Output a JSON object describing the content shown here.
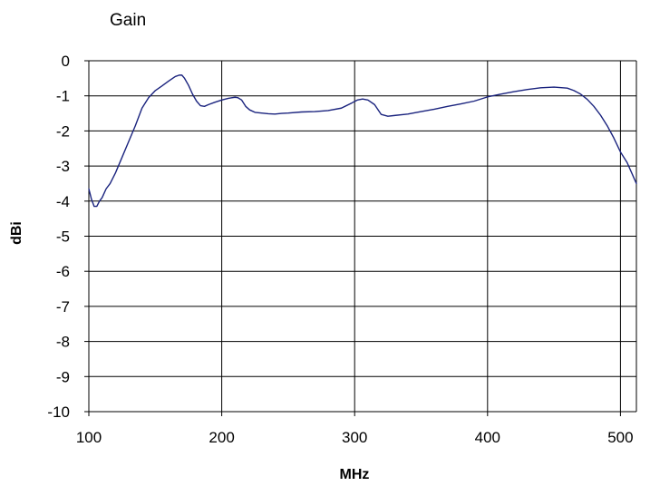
{
  "chart_data": {
    "type": "line",
    "title": "Gain",
    "xlabel": "MHz",
    "ylabel": "dBi",
    "xlim": [
      100,
      512
    ],
    "ylim": [
      -10,
      0
    ],
    "x_ticks": [
      100,
      200,
      300,
      400,
      500
    ],
    "x_tick_labels": [
      "100",
      "200",
      "300",
      "400",
      "500"
    ],
    "y_ticks": [
      0,
      -1,
      -2,
      -3,
      -4,
      -5,
      -6,
      -7,
      -8,
      -9,
      -10
    ],
    "y_tick_labels": [
      "0",
      "-1",
      "-2",
      "-3",
      "-4",
      "-5",
      "-6",
      "-7",
      "-8",
      "-9",
      "-10"
    ],
    "grid": true,
    "line_color": "#1a237e",
    "series": [
      {
        "x": [
          100,
          102,
          104,
          106,
          108,
          110,
          113,
          116,
          120,
          125,
          130,
          135,
          140,
          145,
          150,
          155,
          160,
          165,
          168,
          170,
          172,
          175,
          178,
          181,
          184,
          187,
          190,
          195,
          200,
          205,
          210,
          212,
          215,
          218,
          221,
          225,
          230,
          235,
          240,
          245,
          250,
          260,
          270,
          280,
          290,
          298,
          302,
          306,
          310,
          315,
          320,
          325,
          330,
          340,
          350,
          360,
          370,
          380,
          390,
          400,
          410,
          420,
          430,
          440,
          450,
          460,
          465,
          470,
          475,
          480,
          485,
          490,
          495,
          500,
          505,
          512
        ],
        "y": [
          -3.65,
          -3.95,
          -4.15,
          -4.15,
          -4.0,
          -3.9,
          -3.65,
          -3.5,
          -3.2,
          -2.75,
          -2.3,
          -1.85,
          -1.35,
          -1.05,
          -0.85,
          -0.72,
          -0.58,
          -0.45,
          -0.41,
          -0.41,
          -0.5,
          -0.7,
          -0.95,
          -1.15,
          -1.28,
          -1.3,
          -1.25,
          -1.18,
          -1.12,
          -1.07,
          -1.04,
          -1.05,
          -1.12,
          -1.3,
          -1.4,
          -1.47,
          -1.49,
          -1.51,
          -1.52,
          -1.5,
          -1.49,
          -1.46,
          -1.45,
          -1.42,
          -1.35,
          -1.2,
          -1.12,
          -1.09,
          -1.12,
          -1.25,
          -1.53,
          -1.58,
          -1.56,
          -1.52,
          -1.45,
          -1.38,
          -1.3,
          -1.23,
          -1.15,
          -1.03,
          -0.95,
          -0.88,
          -0.82,
          -0.77,
          -0.75,
          -0.78,
          -0.85,
          -0.95,
          -1.1,
          -1.3,
          -1.55,
          -1.85,
          -2.2,
          -2.6,
          -2.9,
          -3.5
        ]
      }
    ]
  }
}
